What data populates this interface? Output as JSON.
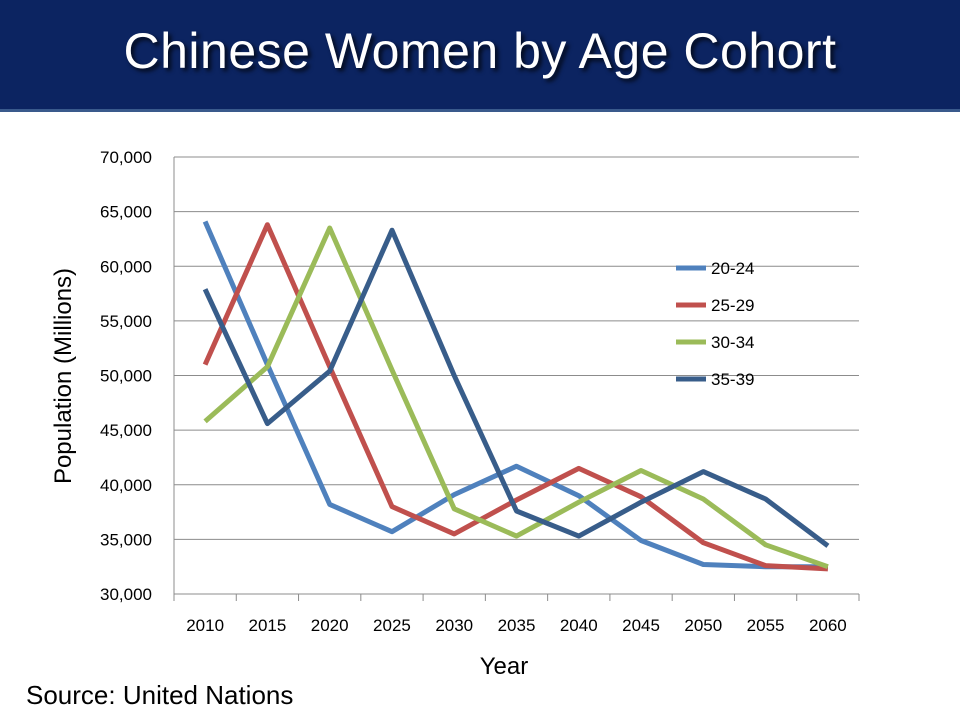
{
  "slide": {
    "title": "Chinese Women by Age Cohort",
    "source": "Source: United Nations"
  },
  "chart_data": {
    "type": "line",
    "title": "",
    "xlabel": "Year",
    "ylabel": "Population (Millions)",
    "ylim": [
      30000,
      70000
    ],
    "yticks": [
      "30,000",
      "35,000",
      "40,000",
      "45,000",
      "50,000",
      "55,000",
      "60,000",
      "65,000",
      "70,000"
    ],
    "grid": true,
    "legend_position": "right",
    "categories": [
      "2010",
      "2015",
      "2020",
      "2025",
      "2030",
      "2035",
      "2040",
      "2045",
      "2050",
      "2055",
      "2060"
    ],
    "series": [
      {
        "name": "20-24",
        "color": "#4f81bd",
        "values": [
          64100,
          51000,
          38200,
          35700,
          39100,
          41700,
          39000,
          34900,
          32700,
          32500,
          32500
        ]
      },
      {
        "name": "25-29",
        "color": "#c0504d",
        "values": [
          51000,
          63800,
          50800,
          38000,
          35500,
          38600,
          41500,
          38900,
          34700,
          32600,
          32300
        ]
      },
      {
        "name": "30-34",
        "color": "#9bbb59",
        "values": [
          45800,
          50800,
          63500,
          50500,
          37800,
          35300,
          38400,
          41300,
          38700,
          34500,
          32500
        ]
      },
      {
        "name": "35-39",
        "color": "#385d8a",
        "values": [
          57900,
          45600,
          50400,
          63300,
          50000,
          37600,
          35300,
          38400,
          41200,
          38700,
          34400
        ]
      }
    ]
  }
}
